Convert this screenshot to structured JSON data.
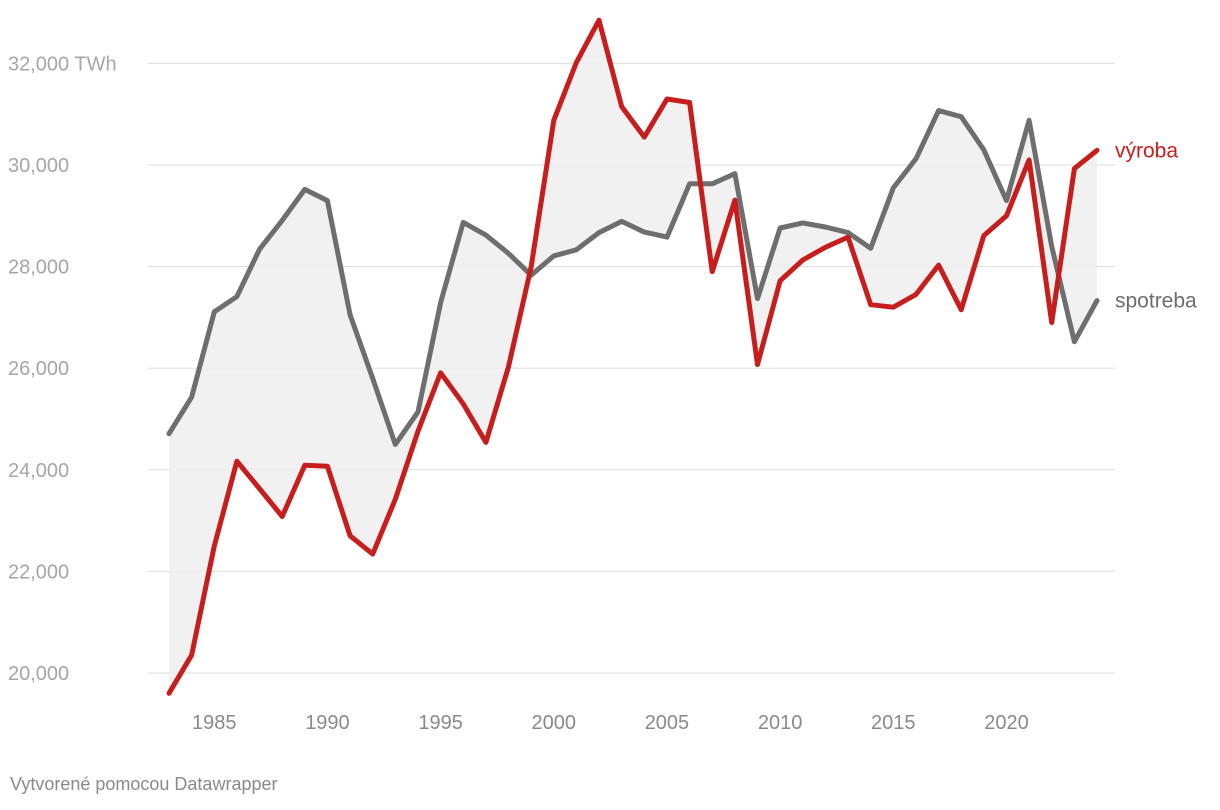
{
  "chart_data": {
    "type": "line",
    "title": "",
    "xlabel": "",
    "ylabel": "",
    "y_unit": "TWh",
    "xlim": [
      1983,
      2024
    ],
    "ylim": [
      19500,
      32900
    ],
    "y_ticks": [
      20000,
      22000,
      24000,
      26000,
      28000,
      30000,
      32000
    ],
    "y_tick_labels": [
      "20,000",
      "22,000",
      "24,000",
      "26,000",
      "28,000",
      "30,000",
      "32,000 TWh"
    ],
    "x_ticks": [
      1985,
      1990,
      1995,
      2000,
      2005,
      2010,
      2015,
      2020
    ],
    "x_tick_labels": [
      "1985",
      "1990",
      "1995",
      "2000",
      "2005",
      "2010",
      "2015",
      "2020"
    ],
    "grid": true,
    "shading": "area between the two series",
    "x": [
      1983,
      1984,
      1985,
      1986,
      1987,
      1988,
      1989,
      1990,
      1991,
      1992,
      1993,
      1994,
      1995,
      1996,
      1997,
      1998,
      1999,
      2000,
      2001,
      2002,
      2003,
      2004,
      2005,
      2006,
      2007,
      2008,
      2009,
      2010,
      2011,
      2012,
      2013,
      2014,
      2015,
      2016,
      2017,
      2018,
      2019,
      2020,
      2021,
      2022,
      2023,
      2024
    ],
    "series": [
      {
        "name": "výroba",
        "color": "#c71e1d",
        "values": [
          19600,
          20350,
          22500,
          24170,
          23630,
          23080,
          24090,
          24070,
          22700,
          22340,
          23420,
          24760,
          25910,
          25300,
          24540,
          26030,
          27990,
          30880,
          32020,
          32850,
          31150,
          30550,
          31300,
          31230,
          27900,
          29310,
          26070,
          27720,
          28130,
          28380,
          28580,
          27250,
          27200,
          27450,
          28030,
          27150,
          28610,
          29000,
          30100,
          26900,
          29930,
          30290
        ]
      },
      {
        "name": "spotreba",
        "color": "#6e6e6e",
        "values": [
          24710,
          25430,
          27110,
          27410,
          28340,
          28910,
          29520,
          29300,
          27050,
          25800,
          24500,
          25140,
          27290,
          28870,
          28620,
          28260,
          27830,
          28210,
          28330,
          28670,
          28890,
          28680,
          28580,
          29630,
          29630,
          29830,
          27370,
          28760,
          28860,
          28780,
          28670,
          28360,
          29550,
          30120,
          31070,
          30950,
          30300,
          29300,
          30880,
          28400,
          26520,
          27330
        ]
      }
    ],
    "credit": "Vytvorené pomocou Datawrapper"
  }
}
